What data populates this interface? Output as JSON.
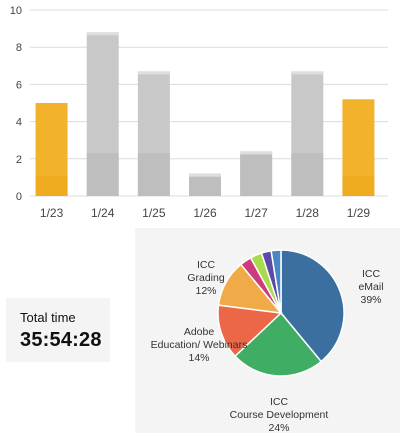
{
  "bar_colors": {
    "highlight": "#f2b22c",
    "highlight_bottom": "#eca81a",
    "normal": "#c8c8c8",
    "normal_bottom": "#b6b6b6",
    "grid": "#dcdcdc"
  },
  "total_time": {
    "label": "Total time",
    "value": "35:54:28"
  },
  "chart_data": [
    {
      "type": "bar",
      "categories": [
        "1/23",
        "1/24",
        "1/25",
        "1/26",
        "1/27",
        "1/28",
        "1/29"
      ],
      "values": [
        5.0,
        8.8,
        6.7,
        1.2,
        2.4,
        6.7,
        5.2
      ],
      "highlighted": [
        true,
        false,
        false,
        false,
        false,
        false,
        true
      ],
      "ylim": [
        0,
        10
      ],
      "yticks": [
        "0",
        "2",
        "4",
        "6",
        "8",
        "10"
      ],
      "grid": true
    },
    {
      "type": "pie",
      "slices": [
        {
          "label_lines": [
            "ICC",
            "eMail"
          ],
          "pct_label": "39%",
          "value": 39,
          "color": "#3a6f9f"
        },
        {
          "label_lines": [
            "ICC",
            "Course Development"
          ],
          "pct_label": "24%",
          "value": 24,
          "color": "#3fae64"
        },
        {
          "label_lines": [
            "Adobe",
            "Education/ Webinars"
          ],
          "pct_label": "14%",
          "value": 14,
          "color": "#ec6748"
        },
        {
          "label_lines": [
            "ICC",
            "Grading"
          ],
          "pct_label": "12%",
          "value": 12,
          "color": "#f0ab48"
        },
        {
          "label_lines": [],
          "pct_label": "",
          "value": 3,
          "color": "#cd3b7d"
        },
        {
          "label_lines": [],
          "pct_label": "",
          "value": 3,
          "color": "#a9d94c"
        },
        {
          "label_lines": [],
          "pct_label": "",
          "value": 2.5,
          "color": "#5b4aa6"
        },
        {
          "label_lines": [],
          "pct_label": "",
          "value": 2.5,
          "color": "#4a86c6"
        }
      ]
    }
  ]
}
